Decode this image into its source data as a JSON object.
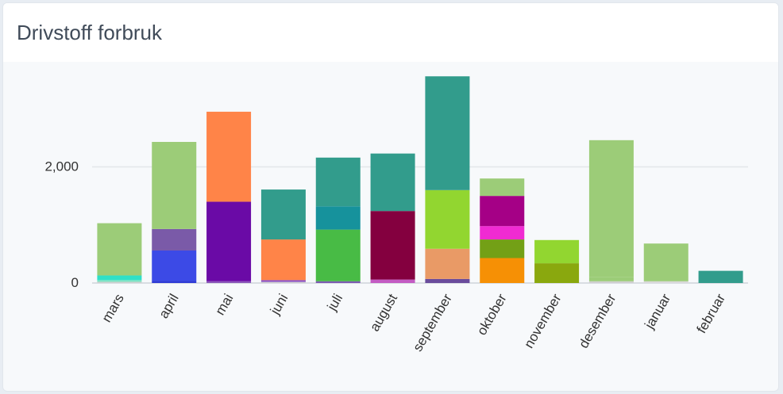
{
  "card": {
    "title": "Drivstoff forbruk"
  },
  "chart_data": {
    "type": "bar",
    "stacked": true,
    "title": "Drivstoff forbruk",
    "xlabel": "",
    "ylabel": "",
    "ylim": [
      0,
      3700
    ],
    "yticks": [
      0,
      2000
    ],
    "ytick_labels": [
      "0",
      "2,000"
    ],
    "grid": true,
    "legend": "none",
    "categories": [
      "mars",
      "april",
      "mai",
      "juni",
      "juli",
      "august",
      "september",
      "oktober",
      "november",
      "desember",
      "januar",
      "februar"
    ],
    "stacks": [
      [
        {
          "value": 20,
          "color": "#cfcfcf"
        },
        {
          "value": 30,
          "color": "#7fe3c2"
        },
        {
          "value": 80,
          "color": "#2ee0c8"
        },
        {
          "value": 900,
          "color": "#9ccc78"
        }
      ],
      [
        {
          "value": 40,
          "color": "#2f3cd6"
        },
        {
          "value": 520,
          "color": "#3c4ae6"
        },
        {
          "value": 370,
          "color": "#7a5aa8"
        },
        {
          "value": 1500,
          "color": "#9ccc78"
        }
      ],
      [
        {
          "value": 30,
          "color": "#8a57b8"
        },
        {
          "value": 1370,
          "color": "#6a0aa6"
        },
        {
          "value": 1550,
          "color": "#ff8448"
        }
      ],
      [
        {
          "value": 20,
          "color": "#cfcfcf"
        },
        {
          "value": 30,
          "color": "#8a4fc8"
        },
        {
          "value": 700,
          "color": "#ff8448"
        },
        {
          "value": 860,
          "color": "#329c8c"
        }
      ],
      [
        {
          "value": 30,
          "color": "#7b5ab0"
        },
        {
          "value": 890,
          "color": "#48bb45"
        },
        {
          "value": 400,
          "color": "#16929c"
        },
        {
          "value": 840,
          "color": "#329c8c"
        }
      ],
      [
        {
          "value": 60,
          "color": "#c35bc3"
        },
        {
          "value": 1180,
          "color": "#84003f"
        },
        {
          "value": 990,
          "color": "#329c8c"
        }
      ],
      [
        {
          "value": 70,
          "color": "#6a4c9c"
        },
        {
          "value": 520,
          "color": "#e99a66"
        },
        {
          "value": 1010,
          "color": "#92d630"
        },
        {
          "value": 1960,
          "color": "#329c8c"
        }
      ],
      [
        {
          "value": 430,
          "color": "#f69005"
        },
        {
          "value": 320,
          "color": "#73a016"
        },
        {
          "value": 230,
          "color": "#f02bd2"
        },
        {
          "value": 520,
          "color": "#a50086"
        },
        {
          "value": 300,
          "color": "#9ccc78"
        }
      ],
      [
        {
          "value": 340,
          "color": "#8aa80e"
        },
        {
          "value": 400,
          "color": "#92d630"
        }
      ],
      [
        {
          "value": 30,
          "color": "#cfcfcf"
        },
        {
          "value": 70,
          "color": "#9ccc78"
        },
        {
          "value": 2360,
          "color": "#9ccc78"
        }
      ],
      [
        {
          "value": 30,
          "color": "#d9d9d9"
        },
        {
          "value": 650,
          "color": "#9ccc78"
        }
      ],
      [
        {
          "value": 210,
          "color": "#329c8c"
        }
      ]
    ]
  }
}
